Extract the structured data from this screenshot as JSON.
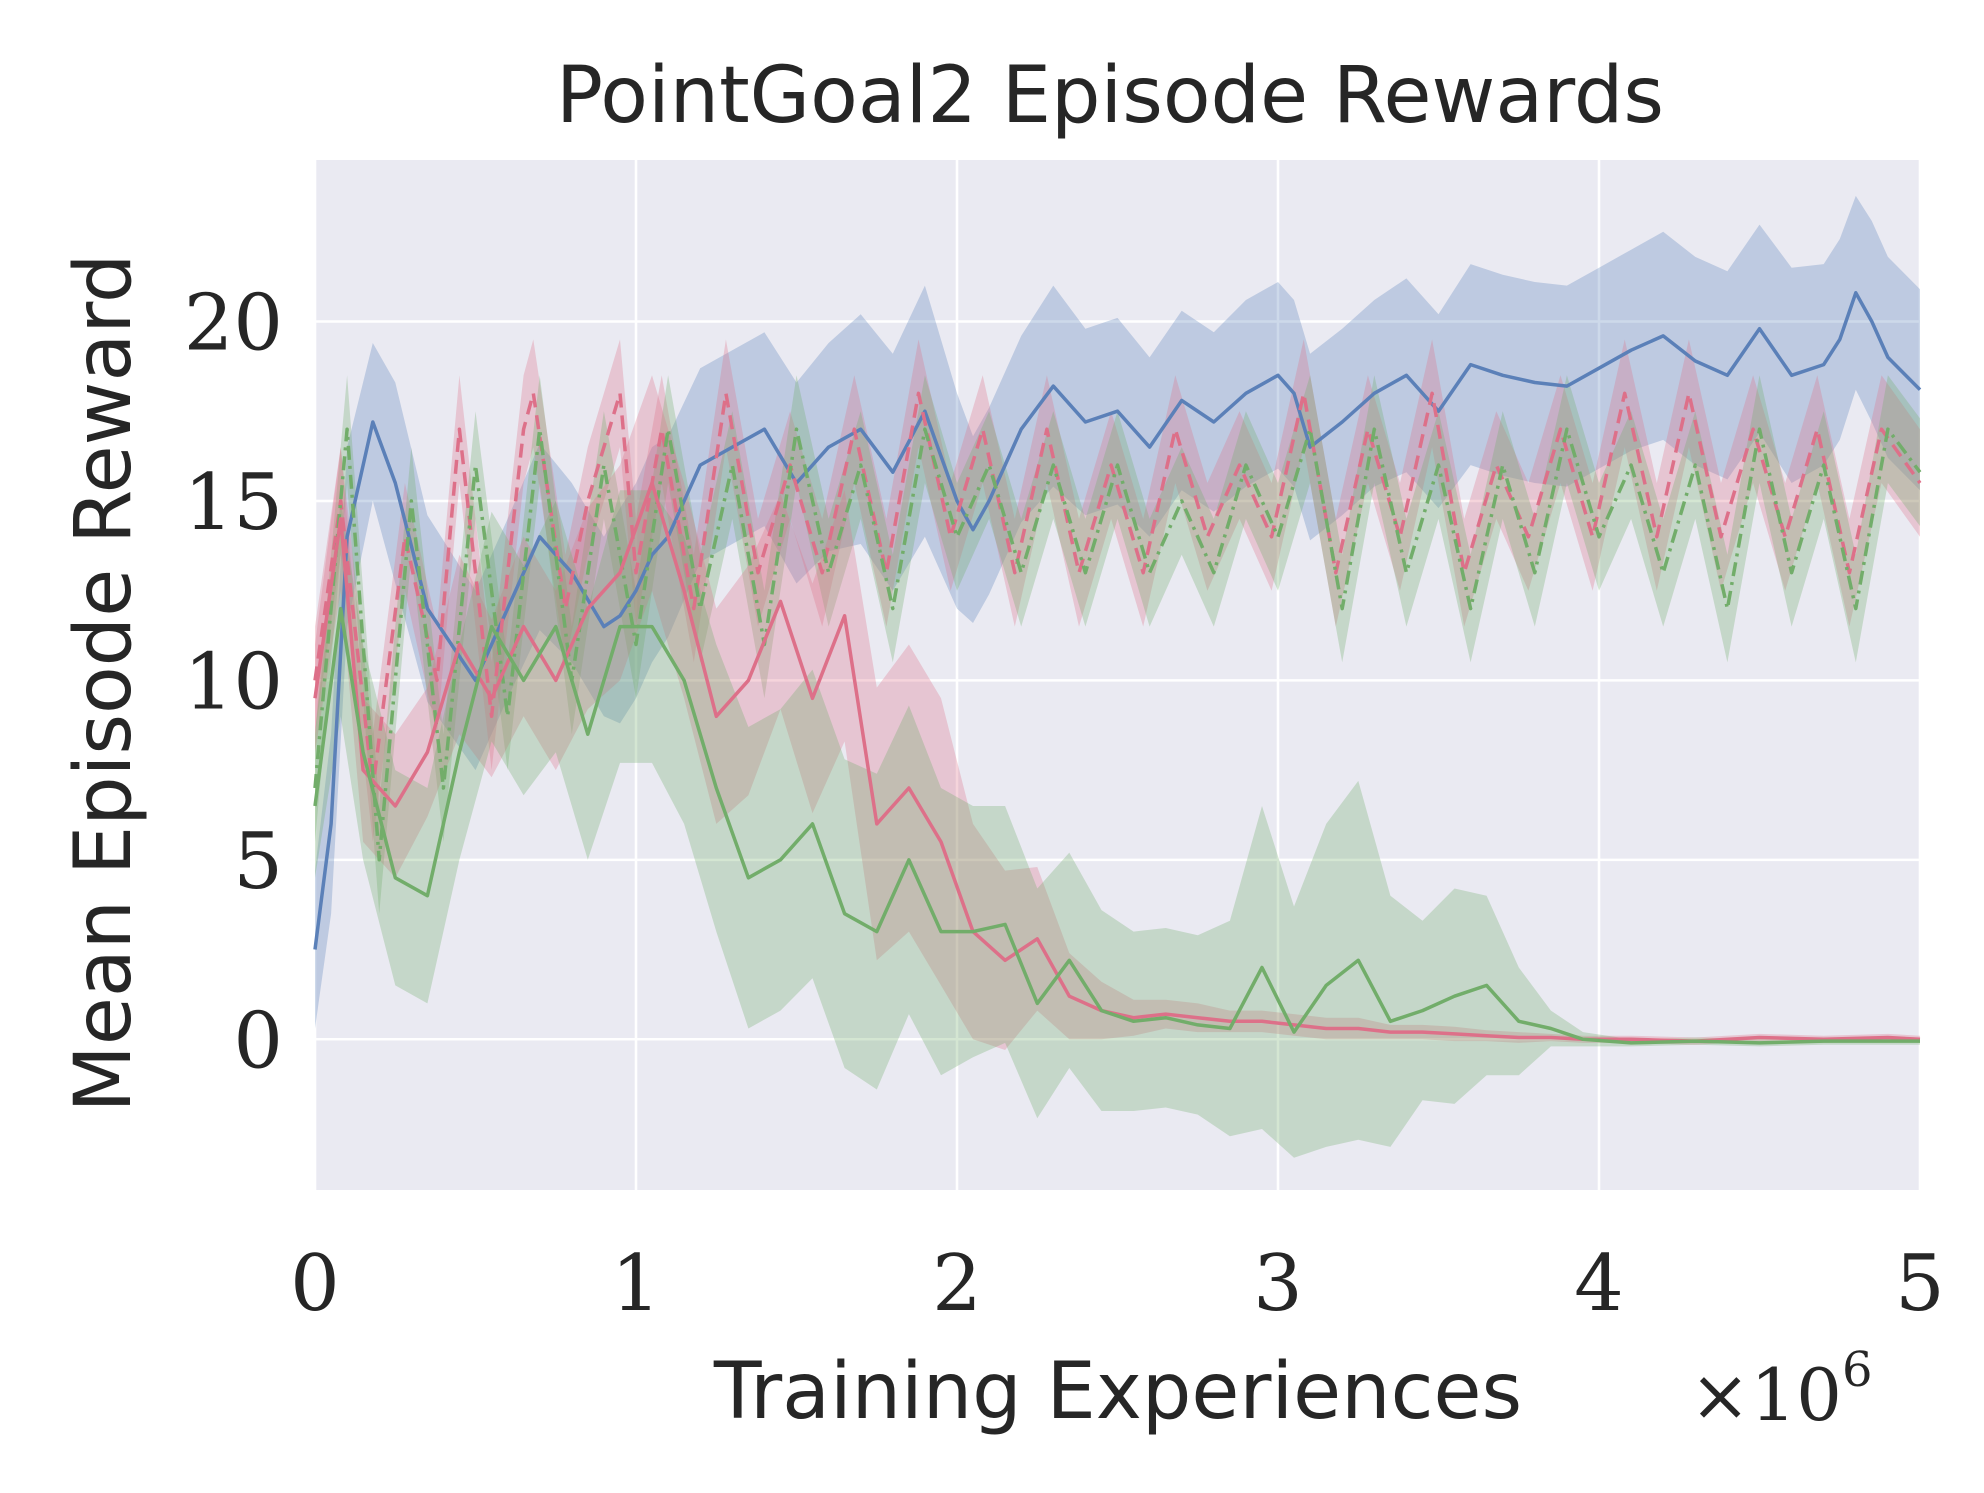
{
  "chart_data": {
    "type": "line",
    "title": "PointGoal2 Episode Rewards",
    "xlabel": "Training Experiences",
    "ylabel": "Mean Episode Reward",
    "x_multiplier": {
      "base": "×10",
      "exponent": "6"
    },
    "xlim": [
      0,
      5
    ],
    "ylim": [
      -4.2,
      24.5
    ],
    "xticks": [
      0,
      1,
      2,
      3,
      4,
      5
    ],
    "yticks": [
      0,
      5,
      10,
      15,
      20
    ],
    "grid": true,
    "legend": "none",
    "background": "#eaeaf2",
    "series": [
      {
        "color": "#5b80b8",
        "style": "solid",
        "band": true,
        "x": [
          0,
          0.05,
          0.1,
          0.18,
          0.25,
          0.35,
          0.5,
          0.6,
          0.7,
          0.8,
          0.9,
          0.95,
          1.0,
          1.05,
          1.1,
          1.2,
          1.3,
          1.4,
          1.5,
          1.6,
          1.7,
          1.8,
          1.9,
          2.0,
          2.05,
          2.1,
          2.2,
          2.3,
          2.4,
          2.5,
          2.6,
          2.7,
          2.8,
          2.9,
          3.0,
          3.05,
          3.1,
          3.2,
          3.3,
          3.4,
          3.5,
          3.6,
          3.7,
          3.8,
          3.9,
          4.0,
          4.1,
          4.2,
          4.3,
          4.4,
          4.5,
          4.6,
          4.7,
          4.75,
          4.8,
          4.85,
          4.9,
          5.0
        ],
        "y": [
          2.5,
          6,
          14,
          17.2,
          15.5,
          12,
          10,
          12,
          14,
          13,
          11.5,
          11.8,
          12.5,
          13.5,
          14,
          16,
          16.5,
          17,
          15.5,
          16.5,
          17,
          15.8,
          17.5,
          15,
          14.2,
          15,
          17,
          18.2,
          17.2,
          17.5,
          16.5,
          17.8,
          17.2,
          18,
          18.5,
          18,
          16.5,
          17.2,
          18,
          18.5,
          17.5,
          18.8,
          18.5,
          18.3,
          18.2,
          18.7,
          19.2,
          19.6,
          18.9,
          18.5,
          19.8,
          18.5,
          18.8,
          19.5,
          20.8,
          20,
          19,
          18.1
        ],
        "band_width": [
          2.2,
          2.5,
          2.5,
          2.2,
          2.8,
          2.6,
          2.5,
          2.5,
          2.6,
          2.5,
          2.5,
          3.0,
          3.0,
          3.0,
          2.8,
          2.7,
          2.7,
          2.7,
          2.8,
          2.9,
          3.2,
          3.3,
          3.5,
          3.0,
          2.6,
          2.6,
          2.6,
          2.8,
          2.6,
          2.6,
          2.5,
          2.5,
          2.5,
          2.6,
          2.6,
          2.6,
          2.6,
          2.6,
          2.6,
          2.7,
          2.7,
          2.8,
          2.8,
          2.8,
          2.8,
          2.8,
          2.8,
          2.9,
          2.9,
          2.9,
          2.9,
          3.0,
          2.8,
          2.8,
          2.7,
          2.8,
          2.8,
          2.8
        ]
      },
      {
        "color": "#dd7089",
        "style": "dashed",
        "band": true,
        "x": [
          0,
          0.08,
          0.18,
          0.28,
          0.38,
          0.45,
          0.55,
          0.65,
          0.68,
          0.78,
          0.85,
          0.95,
          1.0,
          1.08,
          1.18,
          1.28,
          1.38,
          1.48,
          1.58,
          1.68,
          1.78,
          1.88,
          1.98,
          2.08,
          2.18,
          2.28,
          2.38,
          2.48,
          2.58,
          2.68,
          2.78,
          2.88,
          2.98,
          3.08,
          3.18,
          3.28,
          3.38,
          3.48,
          3.58,
          3.68,
          3.78,
          3.88,
          3.98,
          4.08,
          4.18,
          4.28,
          4.38,
          4.48,
          4.58,
          4.68,
          4.78,
          4.88,
          5.0
        ],
        "y": [
          10,
          15,
          7,
          14,
          10,
          17,
          9,
          17,
          18,
          12,
          15,
          18,
          13,
          17,
          12,
          18,
          13,
          16,
          13,
          17,
          13,
          18,
          14,
          17,
          13,
          17,
          13,
          16,
          13,
          17,
          14,
          16,
          14,
          18,
          13,
          17,
          14,
          18,
          13,
          16,
          14,
          17,
          14,
          18,
          14,
          18,
          14,
          17,
          14,
          17,
          13,
          17,
          15.5
        ],
        "band_width": [
          1.5,
          1.5,
          1.5,
          1.5,
          1.5,
          1.5,
          1.5,
          1.5,
          1.5,
          1.5,
          1.5,
          1.5,
          1.5,
          1.5,
          1.5,
          1.5,
          1.5,
          1.5,
          1.5,
          1.5,
          1.5,
          1.5,
          1.5,
          1.5,
          1.5,
          1.5,
          1.5,
          1.5,
          1.5,
          1.5,
          1.5,
          1.5,
          1.5,
          1.5,
          1.5,
          1.5,
          1.5,
          1.5,
          1.5,
          1.5,
          1.5,
          1.5,
          1.5,
          1.5,
          1.5,
          1.5,
          1.5,
          1.5,
          1.5,
          1.5,
          1.5,
          1.5,
          1.5
        ]
      },
      {
        "color": "#72ad6a",
        "style": "dashdot",
        "band": true,
        "x": [
          0,
          0.1,
          0.2,
          0.3,
          0.4,
          0.5,
          0.6,
          0.7,
          0.8,
          0.9,
          1.0,
          1.1,
          1.2,
          1.3,
          1.4,
          1.5,
          1.6,
          1.7,
          1.8,
          1.9,
          2.0,
          2.1,
          2.2,
          2.3,
          2.4,
          2.5,
          2.6,
          2.7,
          2.8,
          2.9,
          3.0,
          3.1,
          3.2,
          3.3,
          3.4,
          3.5,
          3.6,
          3.7,
          3.8,
          3.9,
          4.0,
          4.1,
          4.2,
          4.3,
          4.4,
          4.5,
          4.6,
          4.7,
          4.8,
          4.9,
          5.0
        ],
        "y": [
          7,
          17,
          5,
          15,
          7,
          16,
          9,
          17,
          10,
          16,
          11,
          17,
          12,
          16,
          11,
          17,
          13,
          16,
          12,
          17,
          14,
          16,
          13,
          16,
          13,
          16,
          13,
          15,
          13,
          16,
          14,
          17,
          12,
          17,
          13,
          16,
          12,
          16,
          13,
          17,
          14,
          16,
          13,
          16,
          12,
          17,
          13,
          16,
          12,
          17,
          15.8
        ],
        "band_width": [
          1.5,
          1.5,
          1.5,
          1.5,
          1.5,
          1.5,
          1.5,
          1.5,
          1.5,
          1.5,
          1.5,
          1.5,
          1.5,
          1.5,
          1.5,
          1.5,
          1.5,
          1.5,
          1.5,
          1.5,
          1.5,
          1.5,
          1.5,
          1.5,
          1.5,
          1.5,
          1.5,
          1.5,
          1.5,
          1.5,
          1.5,
          1.5,
          1.5,
          1.5,
          1.5,
          1.5,
          1.5,
          1.5,
          1.5,
          1.5,
          1.5,
          1.5,
          1.5,
          1.5,
          1.5,
          1.5,
          1.5,
          1.5,
          1.5,
          1.5,
          1.5
        ]
      },
      {
        "color": "#dd7089",
        "style": "solid",
        "band": true,
        "x": [
          0,
          0.08,
          0.15,
          0.25,
          0.35,
          0.45,
          0.55,
          0.65,
          0.75,
          0.85,
          0.95,
          1.05,
          1.15,
          1.25,
          1.35,
          1.45,
          1.55,
          1.65,
          1.75,
          1.85,
          1.95,
          2.05,
          2.15,
          2.25,
          2.35,
          2.45,
          2.55,
          2.65,
          2.75,
          2.85,
          2.95,
          3.05,
          3.15,
          3.25,
          3.35,
          3.45,
          3.55,
          3.65,
          3.75,
          3.85,
          3.95,
          4.1,
          4.3,
          4.5,
          4.7,
          4.9,
          5.0
        ],
        "y": [
          9.5,
          14.5,
          7.5,
          6.5,
          8,
          11,
          9.5,
          11.5,
          10,
          12,
          13,
          15.5,
          12.5,
          9,
          10,
          12.2,
          9.5,
          11.8,
          6,
          7,
          5.5,
          3,
          2.2,
          2.8,
          1.2,
          0.8,
          0.6,
          0.7,
          0.6,
          0.5,
          0.5,
          0.4,
          0.3,
          0.3,
          0.2,
          0.2,
          0.15,
          0.1,
          0.05,
          0.05,
          0.0,
          0.0,
          -0.05,
          0.05,
          0.0,
          0.05,
          0.0
        ],
        "band_width": [
          1.5,
          2.0,
          2.0,
          2.0,
          1.8,
          2.5,
          2.2,
          2.5,
          2.5,
          2.8,
          3.0,
          3.0,
          3.0,
          3.0,
          3.2,
          3.0,
          3.2,
          3.5,
          3.8,
          4.0,
          4.0,
          3.0,
          2.5,
          2.0,
          1.2,
          0.8,
          0.5,
          0.4,
          0.4,
          0.3,
          0.3,
          0.3,
          0.3,
          0.3,
          0.2,
          0.2,
          0.2,
          0.15,
          0.15,
          0.1,
          0.1,
          0.1,
          0.1,
          0.1,
          0.1,
          0.1,
          0.1
        ]
      },
      {
        "color": "#72ad6a",
        "style": "solid",
        "band": true,
        "x": [
          0,
          0.08,
          0.15,
          0.25,
          0.35,
          0.45,
          0.55,
          0.65,
          0.75,
          0.85,
          0.95,
          1.05,
          1.15,
          1.25,
          1.35,
          1.45,
          1.55,
          1.65,
          1.75,
          1.85,
          1.95,
          2.05,
          2.15,
          2.25,
          2.35,
          2.45,
          2.55,
          2.65,
          2.75,
          2.85,
          2.95,
          3.05,
          3.15,
          3.25,
          3.35,
          3.45,
          3.55,
          3.65,
          3.75,
          3.85,
          3.95,
          4.1,
          4.3,
          4.5,
          4.7,
          4.9,
          5.0
        ],
        "y": [
          6.5,
          12,
          8,
          4.5,
          4,
          8,
          11.5,
          10,
          11.5,
          8.5,
          11.5,
          11.5,
          10,
          7,
          4.5,
          5,
          6,
          3.5,
          3,
          5,
          3,
          3,
          3.2,
          1,
          2.2,
          0.8,
          0.5,
          0.6,
          0.4,
          0.3,
          2,
          0.2,
          1.5,
          2.2,
          0.5,
          0.8,
          1.2,
          1.5,
          0.5,
          0.3,
          0.0,
          -0.1,
          -0.05,
          -0.1,
          -0.05,
          -0.05,
          -0.05
        ],
        "band_width": [
          2.0,
          3.0,
          3.0,
          3.0,
          3.0,
          3.0,
          3.2,
          3.2,
          3.5,
          3.5,
          3.8,
          3.8,
          4.0,
          4.0,
          4.2,
          4.2,
          4.3,
          4.3,
          4.4,
          4.3,
          4.0,
          3.5,
          3.3,
          3.2,
          3.0,
          2.8,
          2.5,
          2.5,
          2.5,
          3.0,
          4.5,
          3.5,
          4.5,
          5.0,
          3.5,
          2.5,
          3.0,
          2.5,
          1.5,
          0.5,
          0.2,
          0.1,
          0.1,
          0.1,
          0.1,
          0.1,
          0.1
        ]
      }
    ]
  }
}
